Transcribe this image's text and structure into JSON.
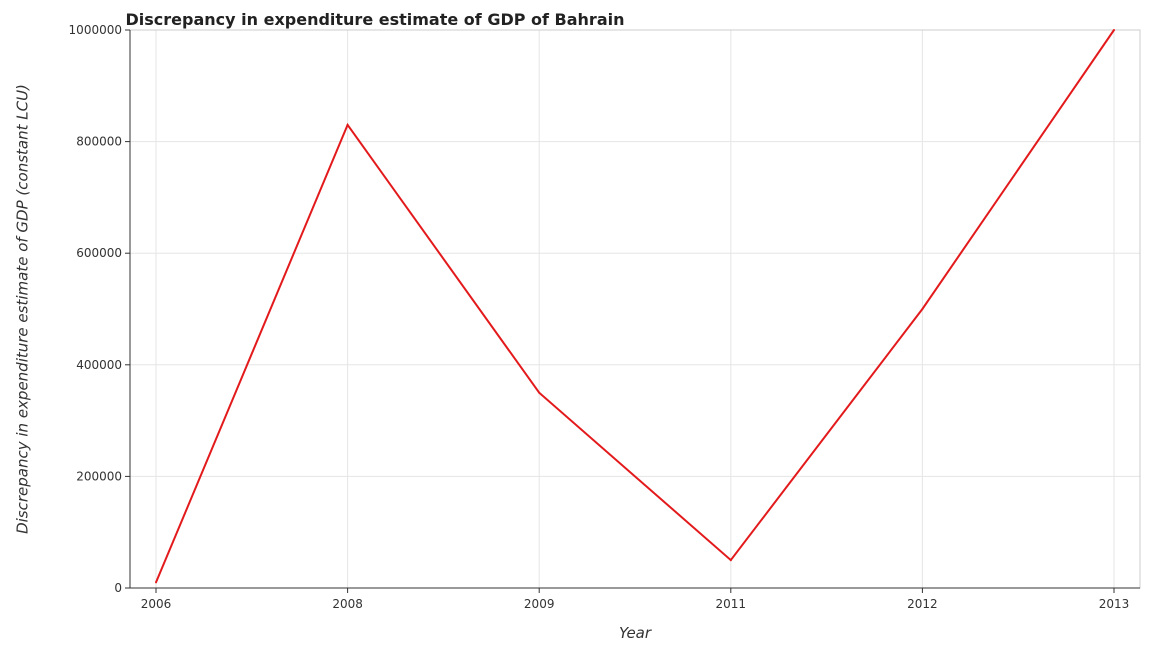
{
  "chart_data": {
    "type": "line",
    "title": "Discrepancy in expenditure estimate of GDP of Bahrain",
    "xlabel": "Year",
    "ylabel": "Discrepancy in expenditure estimate of GDP (constant LCU)",
    "categories": [
      "2006",
      "2008",
      "2009",
      "2011",
      "2012",
      "2013"
    ],
    "series": [
      {
        "values": [
          10000,
          830000,
          350000,
          50000,
          500000,
          1000000
        ],
        "color": "#e31a1c"
      }
    ],
    "ylim": [
      0,
      1000000
    ],
    "yticks": [
      0,
      200000,
      400000,
      600000,
      800000,
      1000000
    ],
    "ytick_labels": [
      "0",
      "200000",
      "400000",
      "600000",
      "800000",
      "1000000"
    ],
    "grid": true
  }
}
